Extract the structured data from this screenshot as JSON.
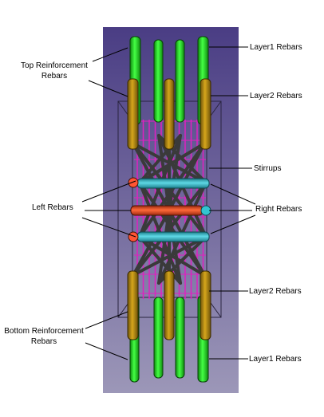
{
  "labels": {
    "top_reinforcement_line1": "Top Reinforcement",
    "top_reinforcement_line2": "Rebars",
    "layer1_top": "Layer1 Rebars",
    "layer2_top": "Layer2 Rebars",
    "stirrups": "Stirrups",
    "left_rebars": "Left Rebars",
    "right_rebars": "Right Rebars",
    "layer2_bottom": "Layer2 Rebars",
    "bottom_reinforcement_line1": "Bottom Reinforcement",
    "bottom_reinforcement_line2": "Rebars",
    "layer1_bottom": "Layer1 Rebars"
  },
  "colors": {
    "background_top": "#4a3d84",
    "background_bottom": "#9c97b8",
    "layer1_rebar": "#22dd22",
    "layer2_rebar": "#b58a12",
    "stirrup": "#e020c0",
    "side_rebar_cyan": "#35b7c8",
    "side_rebar_red": "#e84a28",
    "rebar_end_red": "#ff5533",
    "rebar_end_cyan": "#33c4d0"
  }
}
